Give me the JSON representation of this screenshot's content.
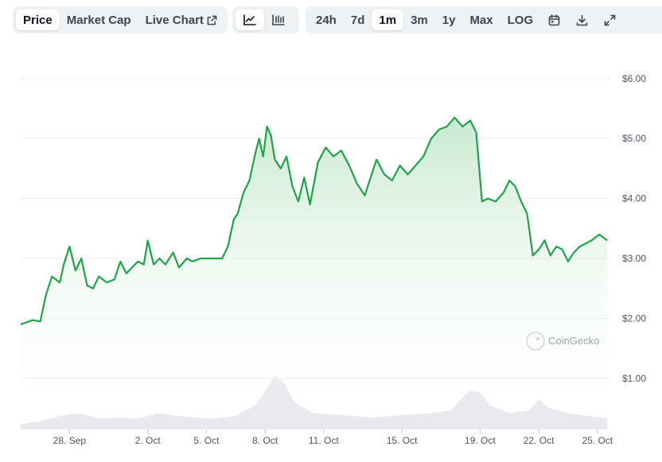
{
  "toolbar": {
    "metric_tabs": [
      {
        "label": "Price",
        "active": true
      },
      {
        "label": "Market Cap",
        "active": false
      },
      {
        "label": "Live Chart",
        "active": false
      }
    ],
    "view_icons": [
      {
        "icon": "line-chart-icon",
        "active": true
      },
      {
        "icon": "candlestick-chart-icon",
        "active": false
      }
    ],
    "ranges": [
      {
        "label": "24h",
        "active": false
      },
      {
        "label": "7d",
        "active": false
      },
      {
        "label": "1m",
        "active": true
      },
      {
        "label": "3m",
        "active": false
      },
      {
        "label": "1y",
        "active": false
      },
      {
        "label": "Max",
        "active": false
      },
      {
        "label": "LOG",
        "active": false
      }
    ],
    "action_icons": [
      "calendar-icon",
      "download-icon",
      "expand-icon"
    ]
  },
  "watermark": "CoinGecko",
  "colors": {
    "line": "#1fa34a",
    "area_top": "#bfe6c8",
    "volume": "#e5e7eb",
    "grid": "#eceef1",
    "active_tab_bg": "#ffffff",
    "toolbar_bg": "#eff2f5"
  },
  "chart_data": {
    "type": "line",
    "y_tick_labels": [
      "$6.00",
      "$5.00",
      "$4.00",
      "$3.00",
      "$2.00",
      "$1.00"
    ],
    "y_ticks": [
      6,
      5,
      4,
      3,
      2,
      1
    ],
    "ylim": [
      0.15,
      6.05
    ],
    "x_tick_labels": [
      "28. Sep",
      "2. Oct",
      "5. Oct",
      "8. Oct",
      "11. Oct",
      "15. Oct",
      "19. Oct",
      "22. Oct",
      "25. Oct"
    ],
    "x_ticks": [
      2.5,
      6.5,
      9.5,
      12.5,
      15.5,
      19.5,
      23.5,
      26.5,
      29.5
    ],
    "xlim": [
      0,
      30.2
    ],
    "grid": true,
    "series": [
      {
        "x": [
          0.0,
          0.6,
          1.0,
          1.3,
          1.6,
          2.0,
          2.2,
          2.5,
          2.8,
          3.1,
          3.4,
          3.7,
          4.0,
          4.4,
          4.8,
          5.1,
          5.4,
          5.7,
          6.0,
          6.3,
          6.5,
          6.8,
          7.1,
          7.4,
          7.8,
          8.1,
          8.5,
          8.8,
          9.2,
          9.6,
          10.0,
          10.3,
          10.6,
          10.9,
          11.1,
          11.4,
          11.7,
          12.0,
          12.2,
          12.4,
          12.6,
          12.8,
          13.0,
          13.3,
          13.6,
          13.9,
          14.2,
          14.5,
          14.8,
          15.2,
          15.6,
          16.0,
          16.4,
          16.8,
          17.2,
          17.6,
          17.9,
          18.2,
          18.6,
          19.0,
          19.4,
          19.8,
          20.2,
          20.6,
          21.0,
          21.4,
          21.8,
          22.2,
          22.6,
          23.0,
          23.3,
          23.6,
          23.9,
          24.3,
          24.7,
          25.0,
          25.3,
          25.6,
          25.9,
          26.2,
          26.5,
          26.8,
          27.1,
          27.4,
          27.7,
          28.0,
          28.3,
          28.6,
          28.9,
          29.2,
          29.6,
          30.0
        ],
        "y": [
          1.9,
          1.97,
          1.95,
          2.4,
          2.7,
          2.6,
          2.9,
          3.2,
          2.8,
          3.0,
          2.55,
          2.5,
          2.7,
          2.6,
          2.65,
          2.95,
          2.75,
          2.85,
          2.95,
          2.9,
          3.3,
          2.9,
          3.0,
          2.9,
          3.1,
          2.85,
          3.0,
          2.95,
          3.0,
          3.0,
          3.0,
          3.0,
          3.2,
          3.65,
          3.75,
          4.1,
          4.3,
          4.75,
          5.0,
          4.7,
          5.2,
          5.05,
          4.65,
          4.5,
          4.7,
          4.2,
          3.95,
          4.35,
          3.9,
          4.6,
          4.85,
          4.7,
          4.8,
          4.55,
          4.25,
          4.05,
          4.35,
          4.65,
          4.4,
          4.3,
          4.55,
          4.4,
          4.55,
          4.7,
          5.0,
          5.15,
          5.2,
          5.35,
          5.2,
          5.3,
          5.1,
          3.95,
          4.0,
          3.95,
          4.1,
          4.3,
          4.2,
          3.95,
          3.75,
          3.05,
          3.15,
          3.3,
          3.05,
          3.2,
          3.15,
          2.95,
          3.1,
          3.2,
          3.25,
          3.3,
          3.4,
          3.3
        ]
      }
    ],
    "volume": {
      "x": [
        0,
        1,
        2,
        3,
        4,
        5,
        6,
        7,
        8,
        9,
        10,
        11,
        12,
        12.5,
        13,
        13.5,
        14,
        15,
        16,
        17,
        18,
        19,
        20,
        21,
        22,
        22.5,
        23,
        23.5,
        24,
        25,
        26,
        26.5,
        27,
        28,
        29,
        30
      ],
      "values": [
        0.1,
        0.15,
        0.25,
        0.3,
        0.2,
        0.22,
        0.2,
        0.3,
        0.25,
        0.22,
        0.2,
        0.25,
        0.45,
        0.7,
        1.0,
        0.85,
        0.5,
        0.3,
        0.28,
        0.25,
        0.22,
        0.25,
        0.28,
        0.3,
        0.35,
        0.55,
        0.72,
        0.68,
        0.45,
        0.3,
        0.35,
        0.55,
        0.4,
        0.3,
        0.25,
        0.2
      ]
    }
  }
}
